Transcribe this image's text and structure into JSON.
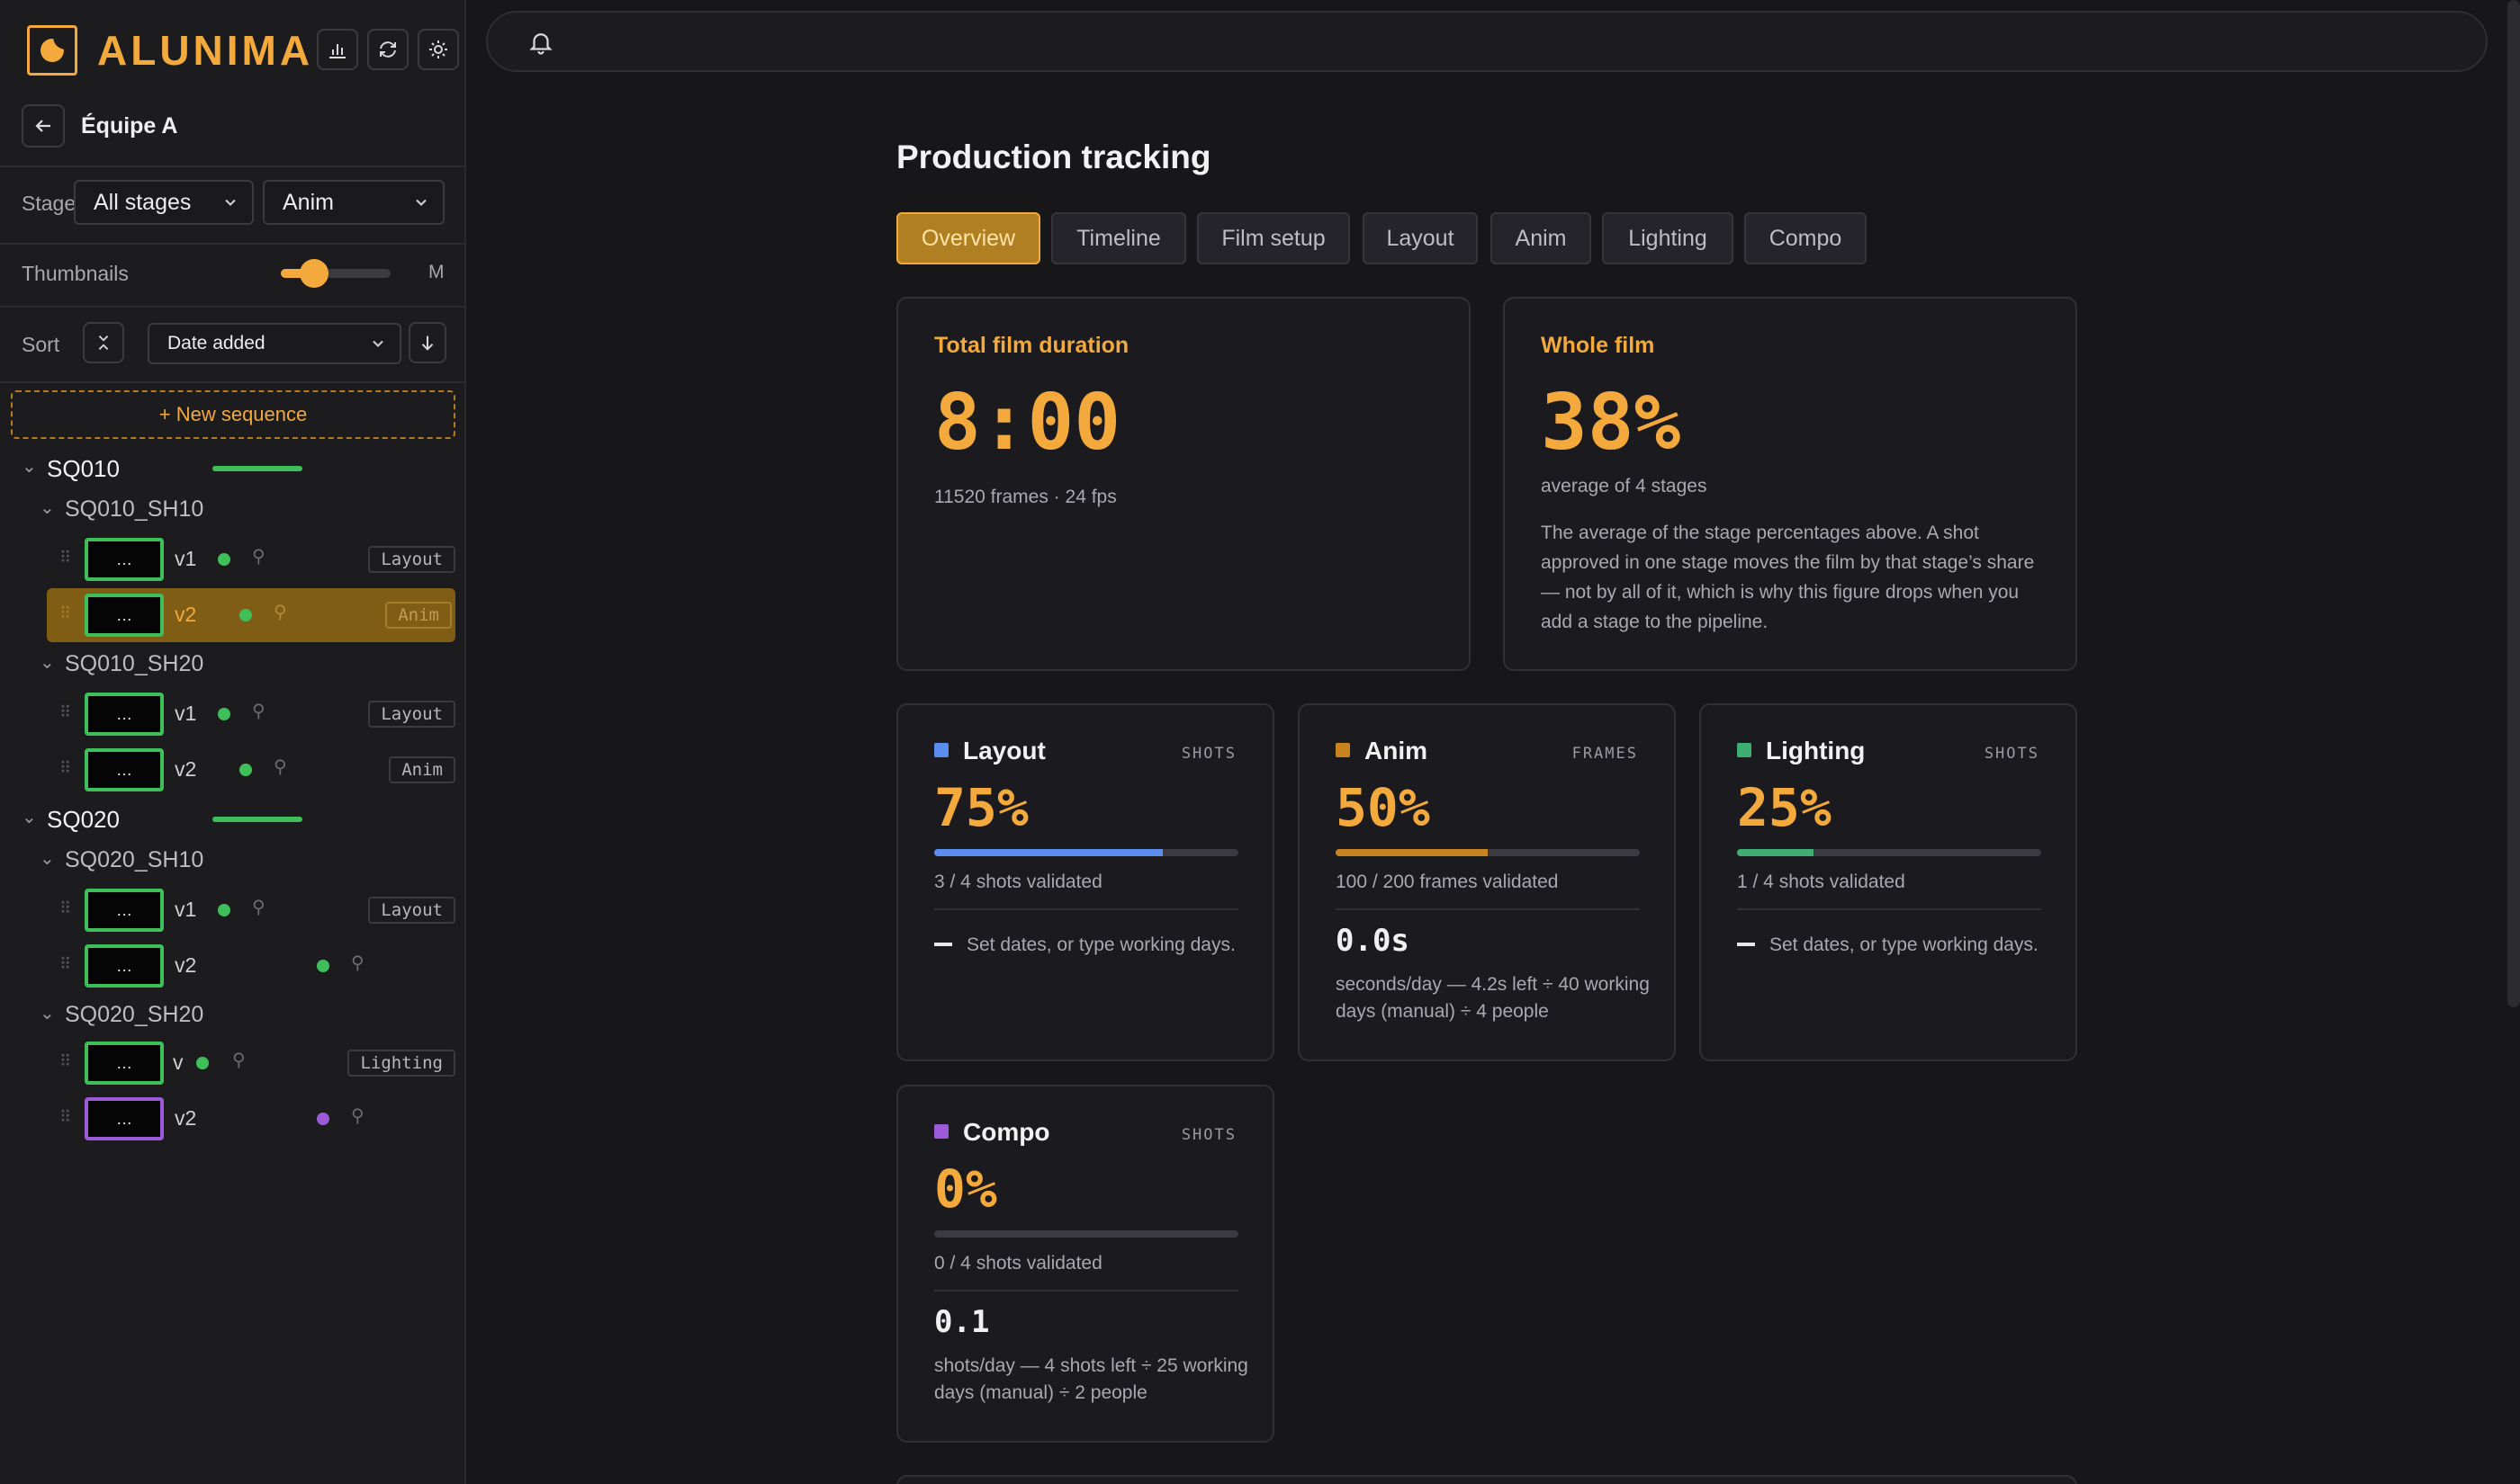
{
  "app": {
    "name": "ALUNIMA"
  },
  "sidebar": {
    "team": "Équipe A",
    "stage_label": "Stage",
    "stage_select": "All stages",
    "stage_select2": "Anim",
    "thumbnails_label": "Thumbnails",
    "thumbnails_size": "M",
    "thumbnails_level": 0.3,
    "sort_label": "Sort",
    "sort_select": "Date added",
    "new_sequence": "+ New sequence",
    "tree": {
      "sq010": "SQ010",
      "sq010_sh10": "SQ010_SH10",
      "sq010_sh10_v1": "v1",
      "sq010_sh10_v1_tag": "Layout",
      "sq010_sh10_v2": "v2",
      "sq010_sh10_v2_tag": "Anim",
      "sq010_sh20": "SQ010_SH20",
      "sq010_sh20_v1": "v1",
      "sq010_sh20_v1_tag": "Layout",
      "sq010_sh20_v2": "v2",
      "sq010_sh20_v2_tag": "Anim",
      "sq020": "SQ020",
      "sq020_sh10": "SQ020_SH10",
      "sq020_sh10_v1": "v1",
      "sq020_sh10_v1_tag": "Layout",
      "sq020_sh10_v2": "v2",
      "sq020_sh20": "SQ020_SH20",
      "sq020_sh20_v1": "v",
      "sq020_sh20_v1_tag": "Lighting",
      "sq020_sh20_v2": "v2",
      "thumb_text": "…"
    }
  },
  "main": {
    "title": "Production tracking",
    "tabs": [
      "Overview",
      "Timeline",
      "Film setup",
      "Layout",
      "Anim",
      "Lighting",
      "Compo"
    ],
    "duration": {
      "title": "Total film duration",
      "value": "8:00",
      "sub": "11520 frames · 24 fps"
    },
    "whole": {
      "title": "Whole film",
      "value": "38%",
      "sub": "average of 4 stages",
      "desc": "The average of the stage percentages above. A shot approved in one stage moves the film by that stage’s share — not by all of it, which is why this figure drops when you add a stage to the pipeline."
    },
    "stages": [
      {
        "name": "Layout",
        "unit": "SHOTS",
        "pct": "75%",
        "progress": 0.75,
        "validated": "3 / 4 shots validated",
        "note": "Set dates, or type working days.",
        "color": "#5b8def"
      },
      {
        "name": "Anim",
        "unit": "FRAMES",
        "pct": "50%",
        "progress": 0.5,
        "validated": "100 / 200 frames validated",
        "rate": "0.0s",
        "rate_desc": "seconds/day — 4.2s left ÷ 40 working days (manual) ÷ 4 people",
        "color": "#c8841f"
      },
      {
        "name": "Lighting",
        "unit": "SHOTS",
        "pct": "25%",
        "progress": 0.25,
        "validated": "1 / 4 shots validated",
        "note": "Set dates, or type working days.",
        "color": "#3fae72"
      },
      {
        "name": "Compo",
        "unit": "SHOTS",
        "pct": "0%",
        "progress": 0,
        "validated": "0 / 4 shots validated",
        "rate": "0.1",
        "rate_desc": "shots/day — 4 shots left ÷ 25 working days (manual) ÷ 2 people",
        "color": "#9c5ad8"
      }
    ]
  }
}
